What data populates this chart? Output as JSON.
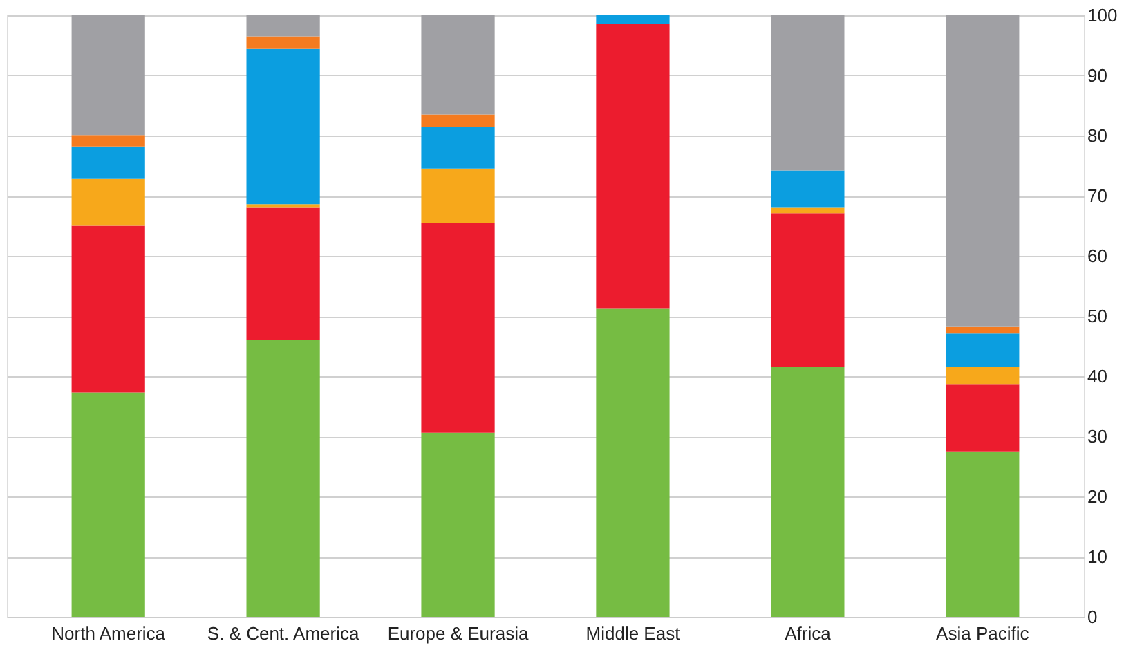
{
  "chart_data": {
    "type": "bar",
    "stacked": true,
    "categories": [
      "North America",
      "S. & Cent. America",
      "Europe & Eurasia",
      "Middle East",
      "Africa",
      "Asia Pacific"
    ],
    "series": [
      {
        "color": "#76bc43",
        "values": [
          37.3,
          46.0,
          30.6,
          51.2,
          41.5,
          27.5
        ]
      },
      {
        "color": "#ec1c2e",
        "values": [
          27.7,
          22.0,
          34.8,
          47.4,
          25.6,
          11.1
        ]
      },
      {
        "color": "#f7a81b",
        "values": [
          7.8,
          0.6,
          9.1,
          0,
          0.9,
          2.9
        ]
      },
      {
        "color": "#0b9ee0",
        "values": [
          5.4,
          25.8,
          6.9,
          1.4,
          6.2,
          5.6
        ]
      },
      {
        "color": "#f47b20",
        "values": [
          1.9,
          2.1,
          2.1,
          0,
          0,
          1.1
        ]
      },
      {
        "color": "#a0a0a4",
        "values": [
          19.9,
          3.5,
          16.5,
          0,
          25.8,
          51.8
        ]
      }
    ],
    "ylim": [
      0,
      100
    ],
    "yticks": [
      0,
      10,
      20,
      30,
      40,
      50,
      60,
      70,
      80,
      90,
      100
    ],
    "grid": "y",
    "legend": false
  }
}
